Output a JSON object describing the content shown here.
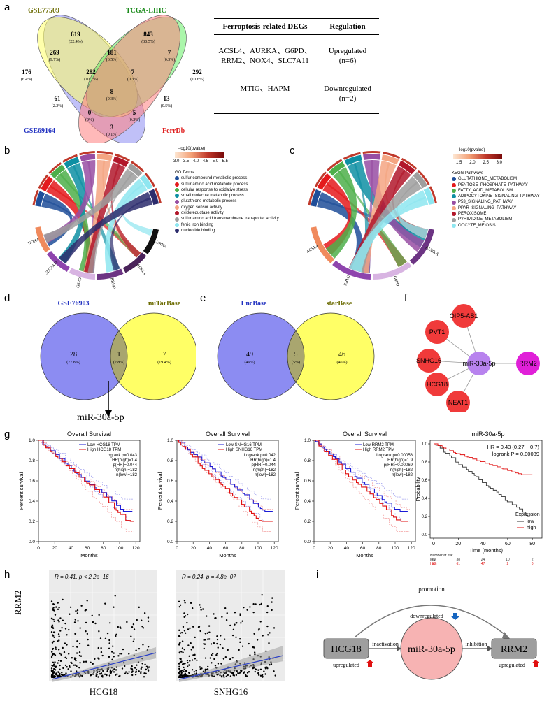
{
  "panels": {
    "a": "a",
    "b": "b",
    "c": "c",
    "d": "d",
    "e": "e",
    "f": "f",
    "g": "g",
    "h": "h",
    "i": "i"
  },
  "venn4": {
    "sets": [
      {
        "name": "GSE77509",
        "color": "#6b6b00"
      },
      {
        "name": "TCGA-LIHC",
        "color": "#1a8a1a"
      },
      {
        "name": "GSE69164",
        "color": "#2030c0"
      },
      {
        "name": "FerrDb",
        "color": "#e02020"
      }
    ],
    "regions": [
      {
        "count": "619",
        "pct": "(22.4%)"
      },
      {
        "count": "843",
        "pct": "(30.5%)"
      },
      {
        "count": "269",
        "pct": "(9.7%)"
      },
      {
        "count": "181",
        "pct": "(6.5%)"
      },
      {
        "count": "7",
        "pct": "(0.3%)"
      },
      {
        "count": "176",
        "pct": "(6.4%)"
      },
      {
        "count": "282",
        "pct": "(10.2%)"
      },
      {
        "count": "7",
        "pct": "(0.3%)"
      },
      {
        "count": "292",
        "pct": "(10.6%)"
      },
      {
        "count": "61",
        "pct": "(2.2%)"
      },
      {
        "count": "8",
        "pct": "(0.3%)"
      },
      {
        "count": "13",
        "pct": "(0.5%)"
      },
      {
        "count": "0",
        "pct": "(0%)"
      },
      {
        "count": "5",
        "pct": "(0.2%)"
      },
      {
        "count": "3",
        "pct": "(0.1%)"
      }
    ]
  },
  "deg_table": {
    "header": [
      "Ferroptosis-related DEGs",
      "Regulation"
    ],
    "rows": [
      {
        "genes_1": "ACSL4、AURKA、G6PD、",
        "genes_2": "RRM2、NOX4、SLC7A11",
        "reg_1": "Upregulated",
        "reg_2": "(n=6)"
      },
      {
        "genes_1": "MTIG、HAPM",
        "genes_2": "",
        "reg_1": "Downregulated",
        "reg_2": "(n=2)"
      }
    ]
  },
  "go_chord": {
    "genes": [
      "NOX4",
      "SLC7A11",
      "G6PD",
      "RRM2",
      "ACSL4",
      "AURKA"
    ],
    "scale_title": "-log10(pvalue)",
    "scale_ticks": [
      "3.0",
      "3.5",
      "4.0",
      "4.5",
      "5.0",
      "5.5"
    ],
    "legend_title": "GO Terms",
    "terms": [
      {
        "label": "sulfur compound metabolic process",
        "color": "#1f4e99"
      },
      {
        "label": "sulfur amino acid metabolic process",
        "color": "#e41a1c"
      },
      {
        "label": "cellular response to oxidative stress",
        "color": "#4daf4a"
      },
      {
        "label": "small molecule metabolic process",
        "color": "#0e8fa3"
      },
      {
        "label": "glutathione metabolic process",
        "color": "#984ea3"
      },
      {
        "label": "oxygen sensor activity",
        "color": "#f4a582"
      },
      {
        "label": "oxidoreductase activity",
        "color": "#b2182b"
      },
      {
        "label": "sulfur amino acid transmembrane transporter activity",
        "color": "#9e9e9e"
      },
      {
        "label": "ferric iron binding",
        "color": "#8ee6f0"
      },
      {
        "label": "nucleotide binding",
        "color": "#2c2c6c"
      }
    ]
  },
  "kegg_chord": {
    "genes": [
      "ACSL4",
      "RRM2",
      "G6PD",
      "AURKA"
    ],
    "scale_title": "-log10(pvalue)",
    "scale_ticks": [
      "1.5",
      "2.0",
      "2.5",
      "3.0"
    ],
    "legend_title": "KEGG Pathways",
    "terms": [
      {
        "label": "GLUTATHIONE_METABOLISM",
        "color": "#1f4e99"
      },
      {
        "label": "PENTOSE_PHOSPHATE_PATHWAY",
        "color": "#e41a1c"
      },
      {
        "label": "FATTY_ACID_METABOLISM",
        "color": "#4daf4a"
      },
      {
        "label": "ADIPOCYTOKINE_SIGNALING_PATHWAY",
        "color": "#0e8fa3"
      },
      {
        "label": "P53_SIGNALING_PATHWAY",
        "color": "#984ea3"
      },
      {
        "label": "PPAR_SIGNALING_PATHWAY",
        "color": "#f4a582"
      },
      {
        "label": "PEROXISOME",
        "color": "#b2182b"
      },
      {
        "label": "PYRIMIDINE_METABOLISM",
        "color": "#9e9e9e"
      },
      {
        "label": "OOCYTE_MEIOSIS",
        "color": "#8ee6f0"
      }
    ]
  },
  "venn_d": {
    "left": {
      "name": "GSE76903",
      "count": "28",
      "pct": "(77.8%)"
    },
    "mid": {
      "count": "1",
      "pct": "(2.8%)"
    },
    "right": {
      "name": "miTarBase",
      "count": "7",
      "pct": "(19.4%)"
    },
    "arrow_label": "miR-30a-5p"
  },
  "venn_e": {
    "left": {
      "name": "LncBase",
      "count": "49",
      "pct": "(49%)"
    },
    "mid": {
      "count": "5",
      "pct": "(5%)"
    },
    "right": {
      "name": "starBase",
      "count": "46",
      "pct": "(46%)"
    }
  },
  "network": {
    "hub": "miR-30a-5p",
    "target": "RRM2",
    "lncs": [
      "OIP5-AS1",
      "PVT1",
      "SNHG16",
      "HCG18",
      "NEAT1"
    ]
  },
  "km": [
    {
      "title": "Overall Survival",
      "ylabel": "Percent survival",
      "xlabel": "Months",
      "legend_low": "Low HCG18 TPM",
      "legend_high": "High HCG18 TPM",
      "stats": [
        "Logrank p=0.043",
        "HR(high)=1.4",
        "p(HR)=0.044",
        "n(high)=182",
        "n(low)=182"
      ],
      "yticks": [
        "0.0",
        "0.2",
        "0.4",
        "0.6",
        "0.8",
        "1.0"
      ],
      "xticks": [
        "0",
        "20",
        "40",
        "60",
        "80",
        "100",
        "120"
      ]
    },
    {
      "title": "Overall Survival",
      "ylabel": "Percent survival",
      "xlabel": "Months",
      "legend_low": "Low SNHG16 TPM",
      "legend_high": "High SNHG16 TPM",
      "stats": [
        "Logrank p=0.042",
        "HR(high)=1.4",
        "p(HR)=0.044",
        "n(high)=182",
        "n(low)=182"
      ],
      "yticks": [
        "0.0",
        "0.2",
        "0.4",
        "0.6",
        "0.8",
        "1.0"
      ],
      "xticks": [
        "0",
        "20",
        "40",
        "60",
        "80",
        "100",
        "120"
      ]
    },
    {
      "title": "Overall Survival",
      "ylabel": "Percent survival",
      "xlabel": "Months",
      "legend_low": "Low RRM2 TPM",
      "legend_high": "High RRM2 TPM",
      "stats": [
        "Logrank p=0.00058",
        "HR(high)=1.9",
        "p(HR)=0.00069",
        "n(high)=182",
        "n(low)=182"
      ],
      "yticks": [
        "0.0",
        "0.2",
        "0.4",
        "0.6",
        "0.8",
        "1.0"
      ],
      "xticks": [
        "0",
        "20",
        "40",
        "60",
        "80",
        "100",
        "120"
      ]
    }
  ],
  "km_mir": {
    "title": "miR-30a-5p",
    "hr": "HR = 0.43 (0.27 − 0.7)",
    "logrank": "logrank P = 0.00039",
    "ylabel": "Probability",
    "xlabel": "Time (months)",
    "legend_title": "Expression",
    "legend_low": "low",
    "legend_high": "high",
    "yticks": [
      "0.0",
      "0.2",
      "0.4",
      "0.6",
      "0.8",
      "1.0"
    ],
    "xticks": [
      "0",
      "20",
      "40",
      "60",
      "80"
    ],
    "risk_title": "Number at risk",
    "risk_low": [
      "low",
      "76",
      "38",
      "24",
      "10",
      "2"
    ],
    "risk_high": [
      "high",
      "90",
      "61",
      "47",
      "2",
      "0"
    ]
  },
  "scatter": [
    {
      "stat": "R = 0.41, p < 2.2e−16",
      "xlabel": "HCG18"
    },
    {
      "stat": "R = 0.24, p = 4.8e−07",
      "xlabel": "SNHG16"
    }
  ],
  "scatter_ylabel": "RRM2",
  "mechanism": {
    "promotion": "promotion",
    "node_left": "HCG18",
    "node_mid": "miR-30a-5p",
    "node_right": "RRM2",
    "edge_left": "inactivation",
    "edge_right": "inhibition",
    "down": "downregulated",
    "up_left": "upregulated",
    "up_right": "upregulated"
  },
  "colors": {
    "low": "#1a1ad6",
    "high": "#e01010",
    "venn_blue": "#8c8cf2",
    "venn_yellow": "#ffff66",
    "node_red": "#f03a3a",
    "node_hub": "#b883ee",
    "node_target": "#e020d8"
  }
}
